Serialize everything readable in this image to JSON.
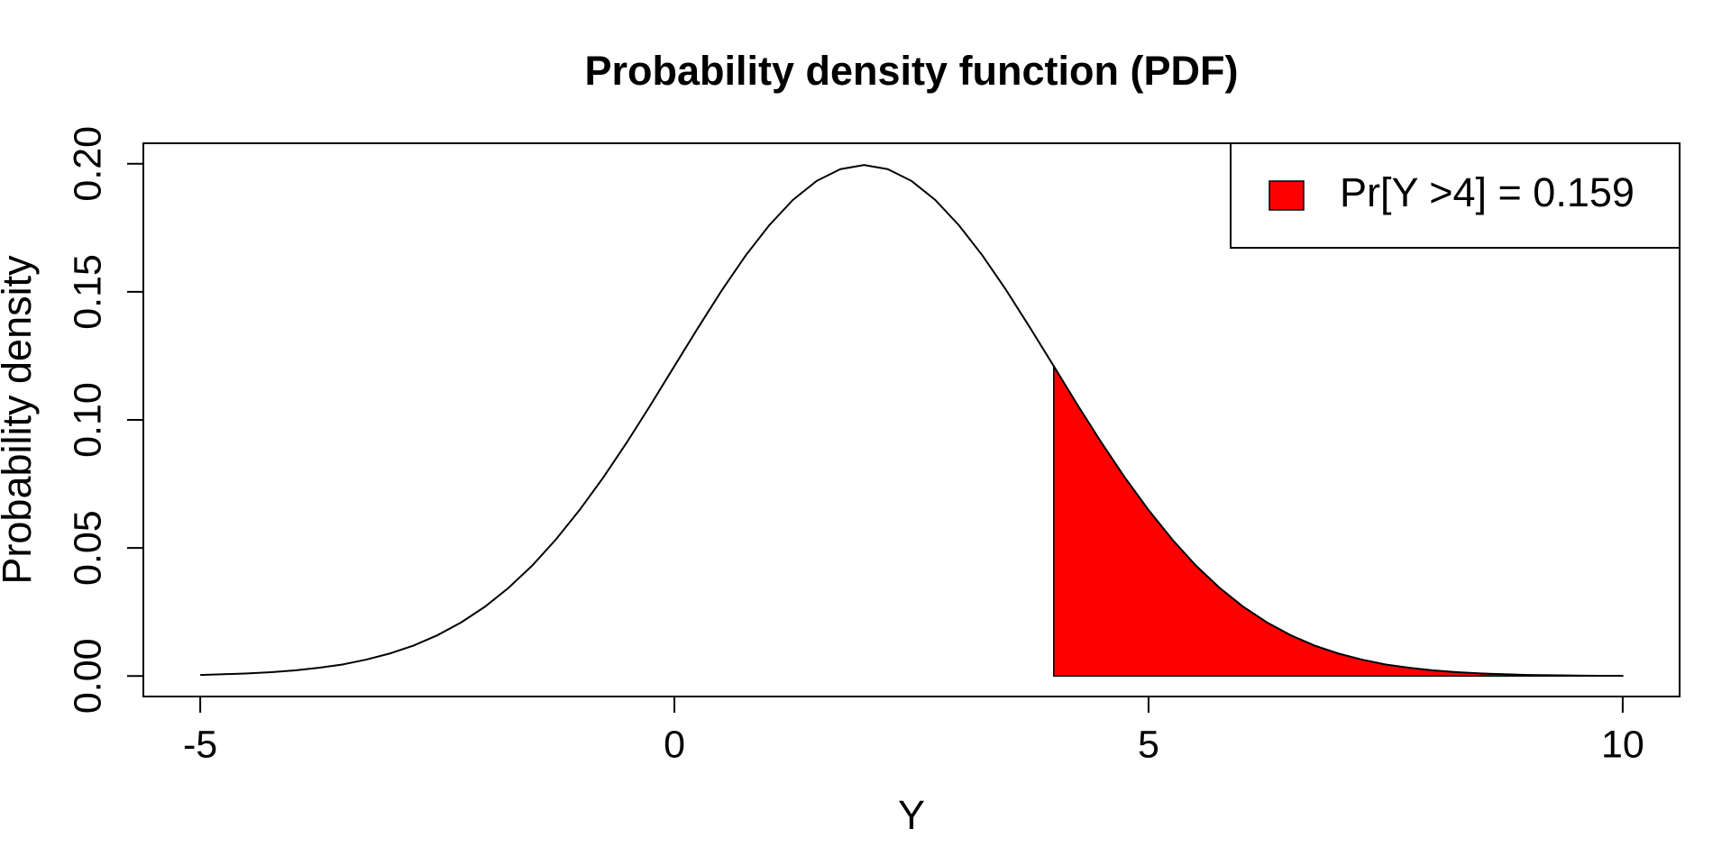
{
  "chart_data": {
    "type": "line",
    "title": "Probability density function (PDF)",
    "x_label": "Y",
    "y_label": "Probability density",
    "x": [
      -5,
      -4.75,
      -4.5,
      -4.25,
      -4,
      -3.75,
      -3.5,
      -3.25,
      -3,
      -2.75,
      -2.5,
      -2.25,
      -2,
      -1.75,
      -1.5,
      -1.25,
      -1,
      -0.75,
      -0.5,
      -0.25,
      0,
      0.25,
      0.5,
      0.75,
      1,
      1.25,
      1.5,
      1.75,
      2,
      2.25,
      2.5,
      2.75,
      3,
      3.25,
      3.5,
      3.75,
      4,
      4.25,
      4.5,
      4.75,
      5,
      5.25,
      5.5,
      5.75,
      6,
      6.25,
      6.5,
      6.75,
      7,
      7.25,
      7.5,
      7.75,
      8,
      8.25,
      8.5,
      8.75,
      9,
      9.25,
      9.5,
      9.75,
      10
    ],
    "values": [
      0.0004,
      0.0007,
      0.001,
      0.0015,
      0.0022,
      0.0032,
      0.0045,
      0.0064,
      0.0088,
      0.0119,
      0.0159,
      0.0209,
      0.027,
      0.0344,
      0.0431,
      0.0533,
      0.0648,
      0.0775,
      0.0913,
      0.1059,
      0.121,
      0.136,
      0.1506,
      0.1641,
      0.176,
      0.1859,
      0.1933,
      0.1979,
      0.1995,
      0.1979,
      0.1933,
      0.1859,
      0.176,
      0.1641,
      0.1506,
      0.136,
      0.121,
      0.1059,
      0.0913,
      0.0775,
      0.0648,
      0.0533,
      0.0431,
      0.0344,
      0.027,
      0.0209,
      0.0159,
      0.0119,
      0.0088,
      0.0064,
      0.0045,
      0.0032,
      0.0022,
      0.0015,
      0.001,
      0.0007,
      0.0004,
      0.0003,
      0.0002,
      0.0001,
      0.0001
    ],
    "color": "#000000",
    "shade": {
      "from": 4,
      "color": "#ff0000",
      "label": "Pr[Y >4] = 0.159"
    },
    "legend": "topright",
    "xlim": [
      -5.6,
      10.6
    ],
    "ylim": [
      -0.008,
      0.208
    ],
    "xticks": [
      -5,
      0,
      5,
      10
    ],
    "yticks": [
      {
        "value": 0,
        "label": "0.00"
      },
      0.05,
      {
        "value": 0.1,
        "label": "0.10"
      },
      0.15,
      {
        "value": 0.2,
        "label": "0.20"
      }
    ],
    "grid": false
  }
}
